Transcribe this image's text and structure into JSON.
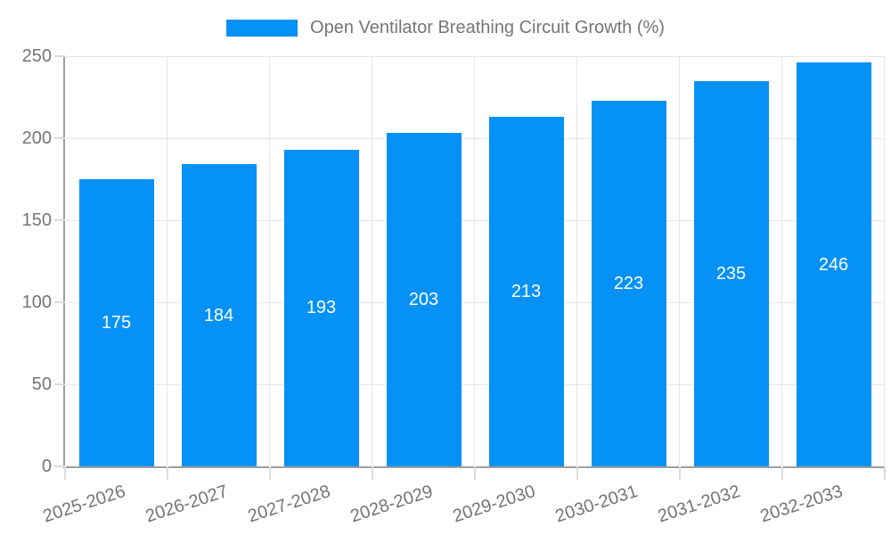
{
  "chart_data": {
    "type": "bar",
    "title": "Open Ventilator Breathing Circuit Growth (%)",
    "categories": [
      "2025-2026",
      "2026-2027",
      "2027-2028",
      "2028-2029",
      "2029-2030",
      "2030-2031",
      "2031-2032",
      "2032-2033"
    ],
    "values": [
      175,
      184,
      193,
      203,
      213,
      223,
      235,
      246
    ],
    "xlabel": "",
    "ylabel": "",
    "ylim": [
      0,
      250
    ],
    "yticks": [
      0,
      50,
      100,
      150,
      200,
      250
    ],
    "grid": true,
    "legend_position": "top",
    "colors": {
      "bar": "#0591f5",
      "bar_value_label": "#ffffff",
      "axis_line": "#9e9e9e",
      "gridline": "#e6e6e6",
      "tick_mark": "#dcdcdc",
      "text": "#757575",
      "background": "#ffffff"
    }
  }
}
